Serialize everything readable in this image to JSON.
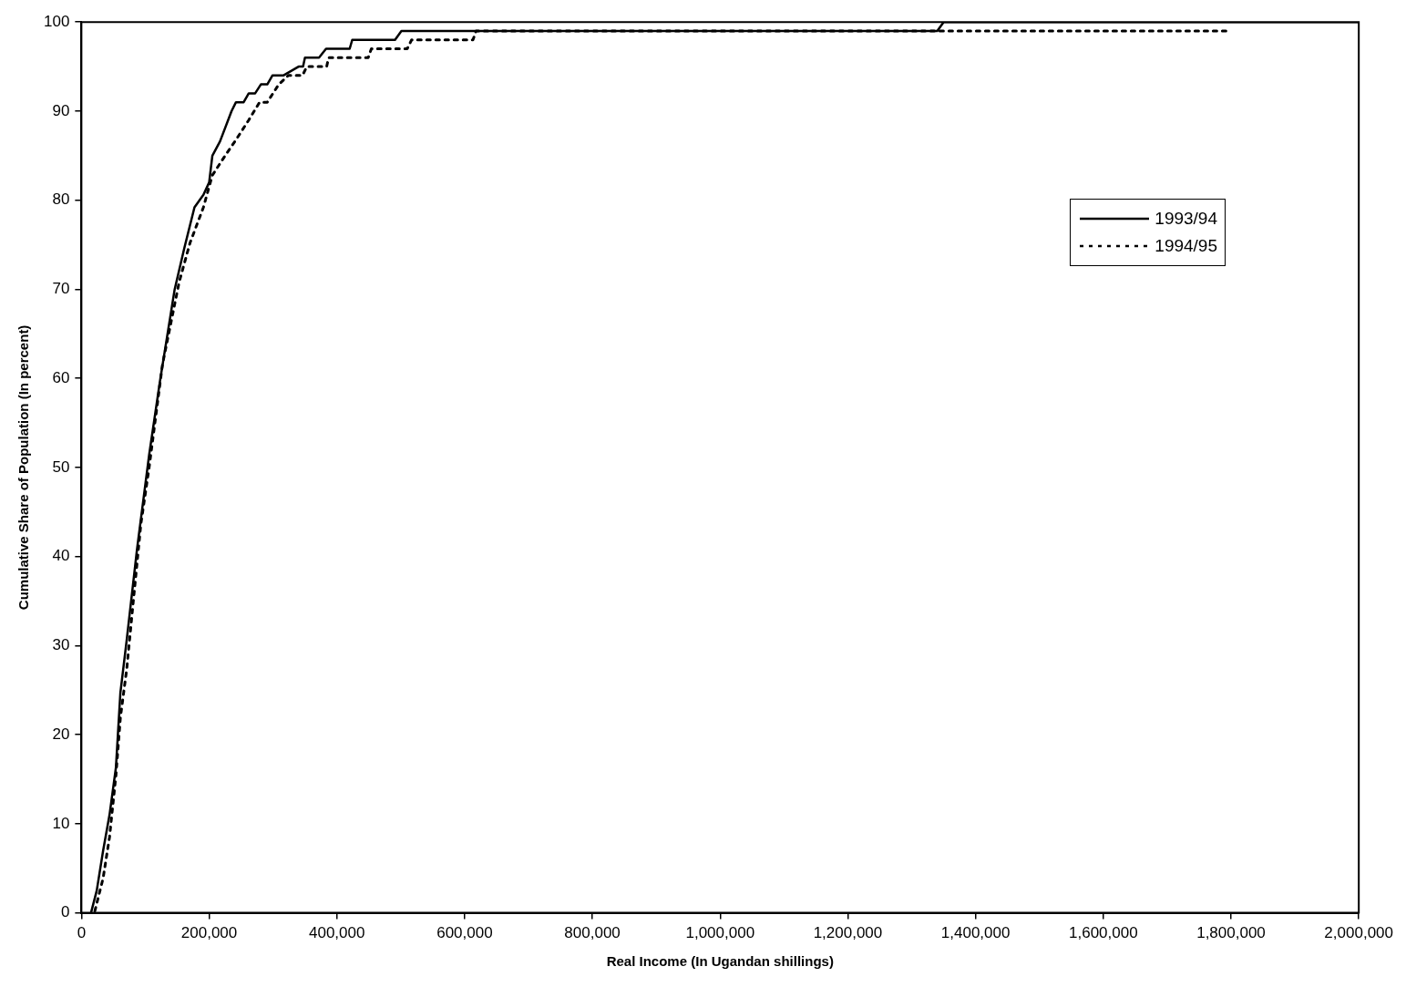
{
  "chart_data": {
    "type": "line",
    "xlabel": "Real Income (In Ugandan shillings)",
    "ylabel": "Cumulative Share of Population (In percent)",
    "xlim": [
      0,
      2000000
    ],
    "ylim": [
      0,
      100
    ],
    "xticks": [
      0,
      {
        "value": 200000,
        "label": "200,000"
      },
      {
        "value": 400000,
        "label": "400,000"
      },
      {
        "value": 600000,
        "label": "600,000"
      },
      {
        "value": 800000,
        "label": "800,000"
      },
      {
        "value": 1000000,
        "label": "1,000,000"
      },
      {
        "value": 1200000,
        "label": "1,200,000"
      },
      {
        "value": 1400000,
        "label": "1,400,000"
      },
      {
        "value": 1600000,
        "label": "1,600,000"
      },
      {
        "value": 1800000,
        "label": "1,800,000"
      },
      {
        "value": 2000000,
        "label": "2,000,000"
      }
    ],
    "yticks": [
      0,
      10,
      20,
      30,
      40,
      50,
      60,
      70,
      80,
      90,
      100
    ],
    "grid": false,
    "legend": "right",
    "marker": "none",
    "series": [
      {
        "name": "1993/94",
        "color": "#000000",
        "line_style": "solid",
        "x": [
          15000,
          24000,
          34000,
          44000,
          54000,
          61000,
          71000,
          87000,
          106000,
          123000,
          146000,
          161000,
          177000,
          191000,
          200000,
          205000,
          217000,
          235000,
          242000,
          254000,
          262000,
          272000,
          281000,
          291000,
          299000,
          316000,
          340000,
          347000,
          350000,
          372000,
          383000,
          420000,
          424000,
          491000,
          501000,
          1340000,
          1350000,
          2000000
        ],
        "values": [
          0,
          2.5,
          7,
          11,
          16.3,
          24.7,
          30.7,
          40.8,
          51.4,
          59.7,
          70,
          74.6,
          79.2,
          80.6,
          82,
          85,
          86.6,
          90,
          91,
          91,
          92,
          92,
          93,
          93,
          94,
          94,
          95,
          95,
          96,
          96,
          97,
          97,
          98,
          98,
          99,
          99,
          100,
          100
        ]
      },
      {
        "name": "1994/95",
        "color": "#000000",
        "line_style": "dotted",
        "x": [
          21000,
          34000,
          44000,
          54000,
          61000,
          71000,
          81000,
          93000,
          106000,
          127000,
          153000,
          170000,
          191000,
          205000,
          225000,
          244000,
          262000,
          279000,
          291000,
          309000,
          324000,
          346000,
          353000,
          384000,
          387000,
          449000,
          454000,
          510000,
          517000,
          613000,
          618000,
          1800000
        ],
        "values": [
          0.2,
          3.9,
          8.5,
          15.4,
          21.9,
          27.4,
          34.8,
          43.6,
          50,
          61.6,
          70.8,
          75.2,
          79.2,
          82.8,
          85,
          87,
          89,
          91,
          91,
          93,
          94,
          94,
          95,
          95,
          96,
          96,
          97,
          97,
          98,
          98,
          99,
          99
        ]
      }
    ]
  }
}
